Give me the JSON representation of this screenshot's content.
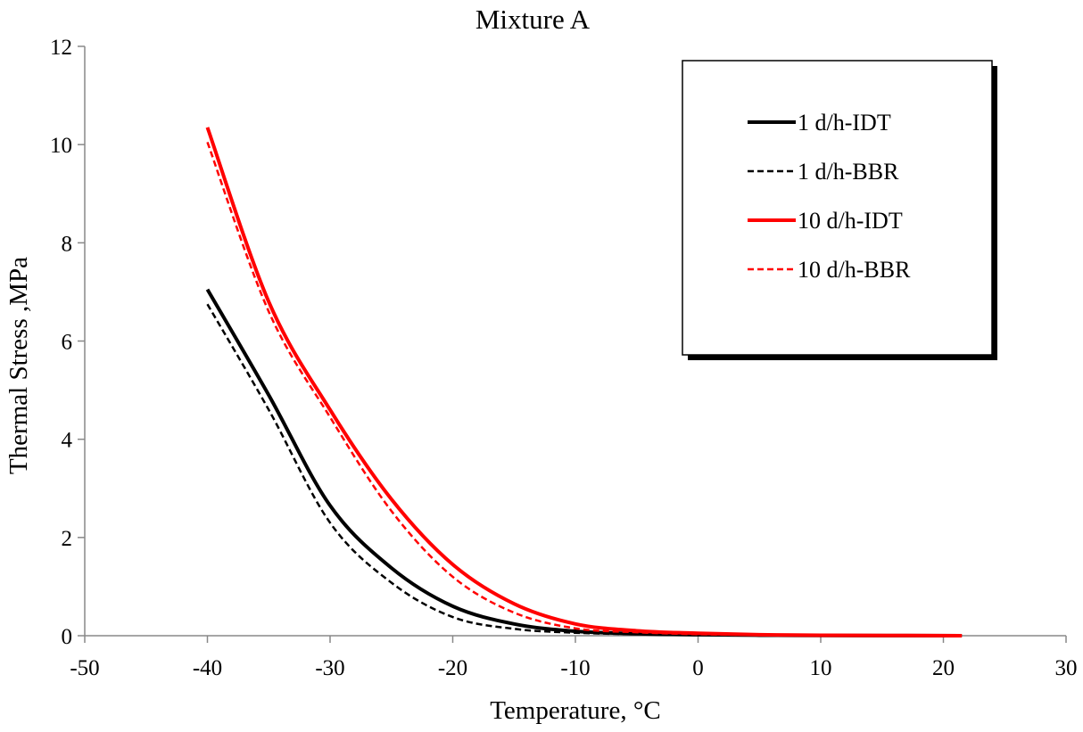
{
  "chart_data": {
    "type": "line",
    "title": "Mixture A",
    "xlabel": "Temperature, °C",
    "ylabel": "Thermal Stress ,MPa",
    "xlim": [
      -50,
      30
    ],
    "ylim": [
      0,
      12
    ],
    "xticks": [
      -50,
      -40,
      -30,
      -20,
      -10,
      0,
      10,
      20,
      30
    ],
    "yticks": [
      0,
      2,
      4,
      6,
      8,
      10,
      12
    ],
    "grid": false,
    "legend_position": "top-right",
    "series": [
      {
        "name": "1 d/h-IDT",
        "color": "#000000",
        "dash": false,
        "x": [
          -40,
          -35,
          -30,
          -25,
          -20,
          -15,
          -10,
          -5,
          0,
          5,
          10,
          21.5
        ],
        "y": [
          7.05,
          4.9,
          2.65,
          1.38,
          0.6,
          0.24,
          0.09,
          0.04,
          0.02,
          0.01,
          0.005,
          0
        ]
      },
      {
        "name": "1 d/h-BBR",
        "color": "#000000",
        "dash": true,
        "x": [
          -40,
          -35,
          -30,
          -25,
          -20,
          -15,
          -10,
          -5,
          0,
          5,
          10,
          21.5
        ],
        "y": [
          6.75,
          4.6,
          2.3,
          1.08,
          0.38,
          0.14,
          0.06,
          0.03,
          0.015,
          0.008,
          0.004,
          0
        ]
      },
      {
        "name": "10 d/h-IDT",
        "color": "#ff0000",
        "dash": false,
        "x": [
          -40,
          -35,
          -30,
          -25,
          -20,
          -15,
          -10,
          -5,
          0,
          5,
          10,
          21.5
        ],
        "y": [
          10.35,
          6.8,
          4.6,
          2.78,
          1.45,
          0.65,
          0.24,
          0.1,
          0.05,
          0.02,
          0.01,
          0
        ]
      },
      {
        "name": "10 d/h-BBR",
        "color": "#ff0000",
        "dash": true,
        "x": [
          -40,
          -35,
          -30,
          -25,
          -20,
          -15,
          -10,
          -5,
          0,
          5,
          10,
          21.5
        ],
        "y": [
          10.05,
          6.6,
          4.45,
          2.54,
          1.2,
          0.47,
          0.15,
          0.07,
          0.03,
          0.015,
          0.008,
          0
        ]
      }
    ]
  }
}
